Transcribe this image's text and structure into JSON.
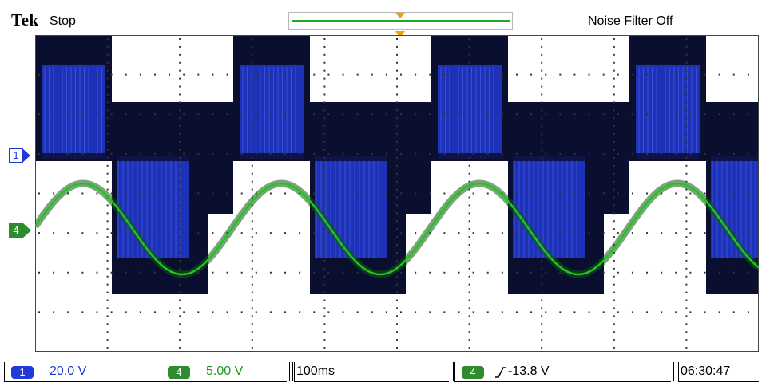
{
  "header": {
    "brand": "Tek",
    "run_state": "Stop",
    "noise_filter": "Noise Filter Off"
  },
  "markers": {
    "ch1": "1",
    "ch4": "4"
  },
  "status": {
    "ch1": {
      "label": "1",
      "scale": "20.0 V",
      "color": "#1f3ad8"
    },
    "ch4": {
      "label": "4",
      "scale": "5.00 V",
      "color": "#2e8b2e"
    },
    "timebase": "100ms",
    "trigger": {
      "source": "4",
      "slope_icon": "rising-edge-icon",
      "level": "-13.8 V"
    },
    "clock": "06:30:47"
  },
  "colors": {
    "ch1_trace": "#1f36c8",
    "ch1_dark": "#0a0f30",
    "ch4_trace": "#22c422",
    "trigger_marker": "#f0a000"
  }
}
